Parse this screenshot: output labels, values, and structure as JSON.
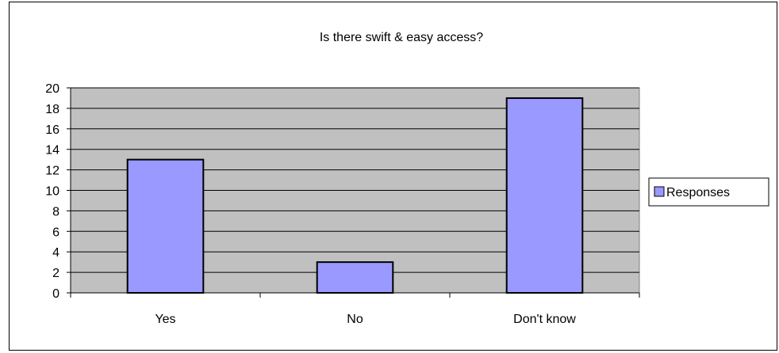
{
  "chart_data": {
    "type": "bar",
    "title": "Is there swift & easy access?",
    "xlabel": "",
    "ylabel": "",
    "categories": [
      "Yes",
      "No",
      "Don't know"
    ],
    "series": [
      {
        "name": "Responses",
        "values": [
          13,
          3,
          19
        ]
      }
    ],
    "ylim": [
      0,
      20
    ],
    "yticks": [
      0,
      2,
      4,
      6,
      8,
      10,
      12,
      14,
      16,
      18,
      20
    ],
    "grid": true,
    "legend": "right",
    "colors": {
      "bar_fill": "#9999ff",
      "plot_background": "#c0c0c0",
      "bar_stroke": "#000000"
    }
  }
}
